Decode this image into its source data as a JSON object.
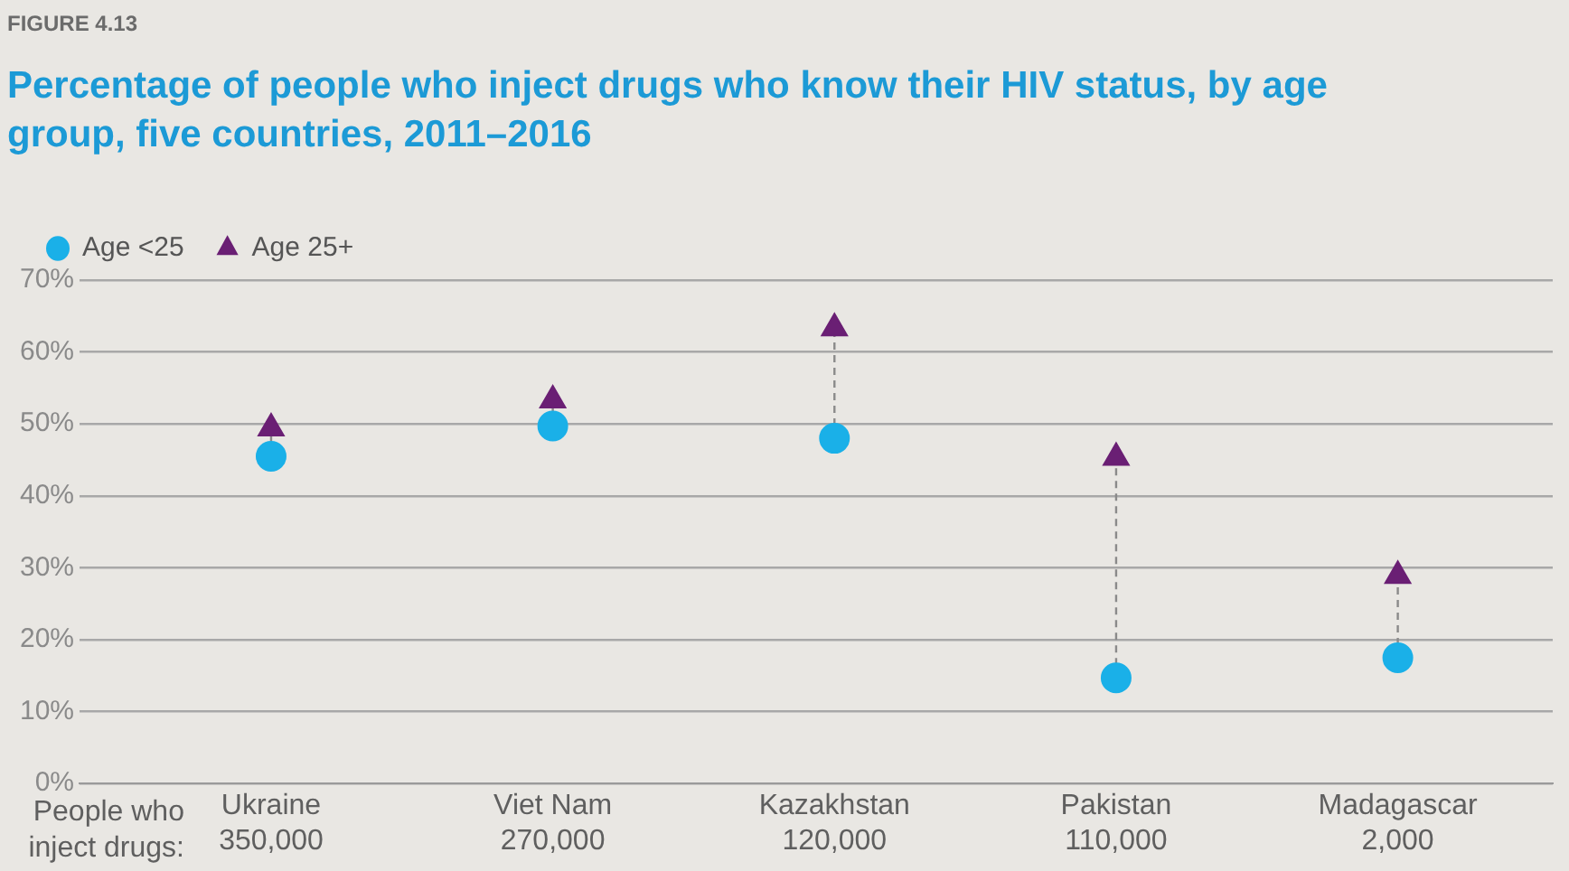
{
  "chart_data": {
    "type": "scatter",
    "title": "Percentage of people who inject drugs who know their HIV status, by age group, five countries, 2011–2016",
    "categories": [
      "Ukraine\n350,000",
      "Viet Nam\n270,000",
      "Kazakhstan\n120,000",
      "Pakistan\n110,000",
      "Madagascar\n2,000"
    ],
    "series": [
      {
        "name": "Age <25",
        "color": "#1ab0e8",
        "marker": "circle",
        "values": [
          45.5,
          49.7,
          48,
          14.7,
          17.5
        ]
      },
      {
        "name": "Age 25+",
        "color": "#6a1f74",
        "marker": "triangle",
        "values": [
          49.4,
          53.3,
          63.3,
          45.3,
          28.9
        ]
      }
    ],
    "ylim": [
      0,
      70
    ],
    "yticks": [
      {
        "value": 0,
        "label": "0%"
      },
      {
        "value": 10,
        "label": "10%"
      },
      {
        "value": 20,
        "label": "20%"
      },
      {
        "value": 30,
        "label": "30%"
      },
      {
        "value": 40,
        "label": "40%"
      },
      {
        "value": 50,
        "label": "50%"
      },
      {
        "value": 60,
        "label": "60%"
      },
      {
        "value": 70,
        "label": "70%"
      }
    ],
    "grid": "y",
    "legend": "top left",
    "annotations": [
      "FIGURE 4.13",
      "People who\ninject drugs:"
    ]
  }
}
